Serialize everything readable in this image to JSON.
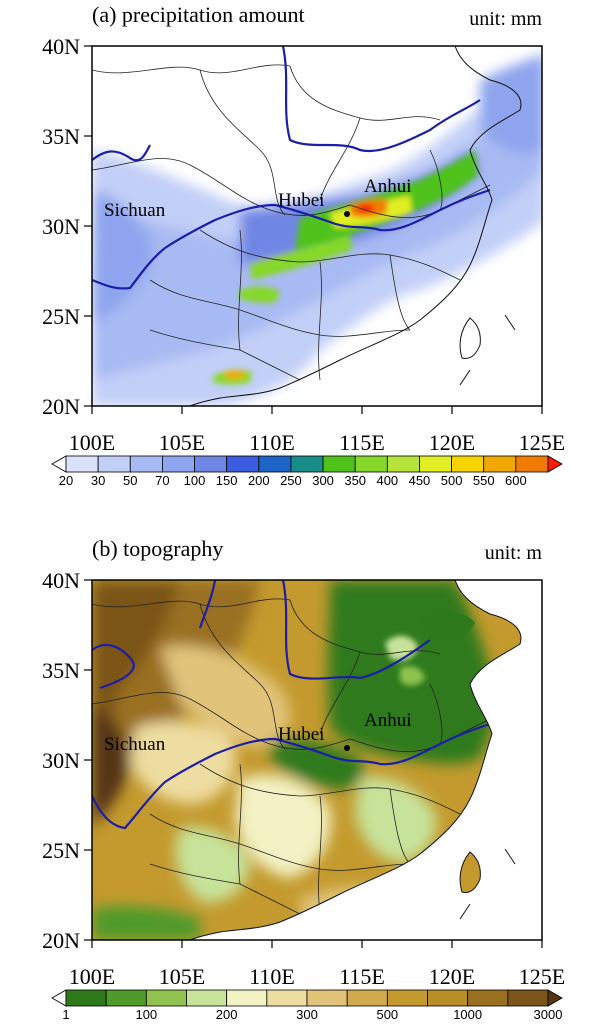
{
  "panels": [
    {
      "title": "(a) precipitation amount",
      "unit": "unit: mm",
      "lat_labels": [
        "40N",
        "35N",
        "30N",
        "25N",
        "20N"
      ],
      "lon_labels": [
        "100E",
        "105E",
        "110E",
        "115E",
        "120E",
        "125E"
      ],
      "regions": [
        "Sichuan",
        "Hubei",
        "Anhui"
      ],
      "colorbar": {
        "labels": [
          "20",
          "30",
          "50",
          "70",
          "100",
          "150",
          "200",
          "250",
          "300",
          "350",
          "400",
          "450",
          "500",
          "550",
          "600"
        ],
        "colors": [
          "#ffffff",
          "#d9e1fb",
          "#c2cff7",
          "#a8baf3",
          "#8ea4ee",
          "#6f86e4",
          "#3b5ee0",
          "#1c64c6",
          "#178c88",
          "#4fc21a",
          "#86d82a",
          "#b5e33a",
          "#e2ee24",
          "#f7d400",
          "#f0a800",
          "#f07b00",
          "#ff1a00"
        ]
      }
    },
    {
      "title": "(b) topography",
      "unit": "unit: m",
      "lat_labels": [
        "40N",
        "35N",
        "30N",
        "25N",
        "20N"
      ],
      "lon_labels": [
        "100E",
        "105E",
        "110E",
        "115E",
        "120E",
        "125E"
      ],
      "regions": [
        "Sichuan",
        "Hubei",
        "Anhui"
      ],
      "colorbar": {
        "labels": [
          "1",
          "100",
          "200",
          "300",
          "500",
          "1000",
          "3000"
        ],
        "colors": [
          "#ffffff",
          "#2e7a1a",
          "#4f9a2a",
          "#8fc24e",
          "#c7e39a",
          "#f3f2c4",
          "#eedda0",
          "#e1c47a",
          "#d2aa4e",
          "#c49a2e",
          "#b78e28",
          "#9a7020",
          "#7a5418",
          "#553512"
        ]
      }
    }
  ]
}
